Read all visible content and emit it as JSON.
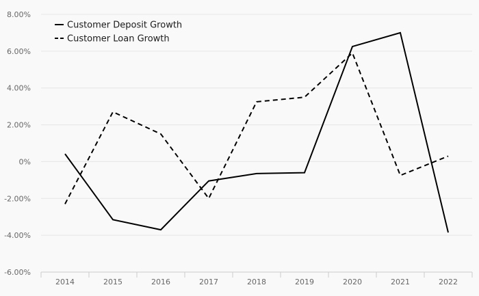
{
  "chart_data": {
    "type": "line",
    "title": "",
    "xlabel": "",
    "ylabel": "",
    "categories": [
      "2014",
      "2015",
      "2016",
      "2017",
      "2018",
      "2019",
      "2020",
      "2021",
      "2022"
    ],
    "y_ticks": [
      8,
      6,
      4,
      2,
      0,
      -2,
      -4,
      -6
    ],
    "y_tick_labels": [
      "8.00%",
      "6.00%",
      "4.00%",
      "2.00%",
      "0%",
      "-2.00%",
      "-4.00%",
      "-6.00%"
    ],
    "ylim": [
      -6,
      8
    ],
    "grid": true,
    "legend_position": "top-left",
    "series": [
      {
        "name": "Customer Deposit Growth",
        "style": "solid",
        "color": "#000000",
        "values": [
          0.42,
          -3.15,
          -3.7,
          -1.05,
          -0.65,
          -0.6,
          6.25,
          7.0,
          -3.85
        ]
      },
      {
        "name": "Customer Loan Growth",
        "style": "dashed",
        "color": "#000000",
        "values": [
          -2.3,
          2.7,
          1.5,
          -2.0,
          3.25,
          3.5,
          5.9,
          -0.75,
          0.3
        ]
      }
    ]
  }
}
